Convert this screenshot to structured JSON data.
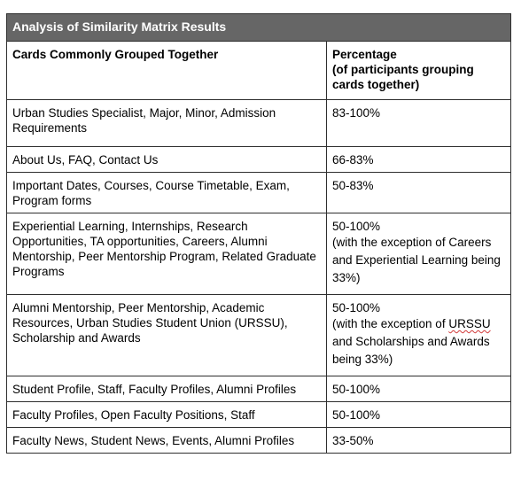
{
  "table": {
    "title": "Analysis of Similarity Matrix Results",
    "headers": {
      "cards": "Cards Commonly Grouped Together",
      "percentage_lines": [
        "Percentage",
        "(of participants grouping",
        "cards together)"
      ]
    },
    "rows": [
      {
        "cards": "Urban Studies Specialist, Major, Minor, Admission Requirements",
        "percentage": "83-100%"
      },
      {
        "cards": "About Us, FAQ, Contact Us",
        "percentage": "66-83%"
      },
      {
        "cards": "Important Dates, Courses, Course Timetable, Exam, Program forms",
        "percentage": "50-83%"
      },
      {
        "cards": "Experiential Learning, Internships, Research Opportunities, TA opportunities, Careers, Alumni Mentorship, Peer Mentorship Program, Related Graduate Programs",
        "percentage": "50-100%",
        "note": "(with the exception of Careers and Experiential Learning being 33%)"
      },
      {
        "cards": "Alumni Mentorship, Peer Mentorship, Academic Resources, Urban Studies Student Union (URSSU), Scholarship and Awards",
        "percentage": "50-100%",
        "note_before": "(with the exception of ",
        "note_flagged_word": "URSSU",
        "note_after": " and Scholarships and Awards being 33%)"
      },
      {
        "cards": "Student Profile, Staff, Faculty Profiles, Alumni Profiles",
        "percentage": "50-100%"
      },
      {
        "cards": "Faculty Profiles, Open Faculty Positions, Staff",
        "percentage": "50-100%"
      },
      {
        "cards": "Faculty News, Student News, Events, Alumni Profiles",
        "percentage": "33-50%"
      }
    ]
  }
}
